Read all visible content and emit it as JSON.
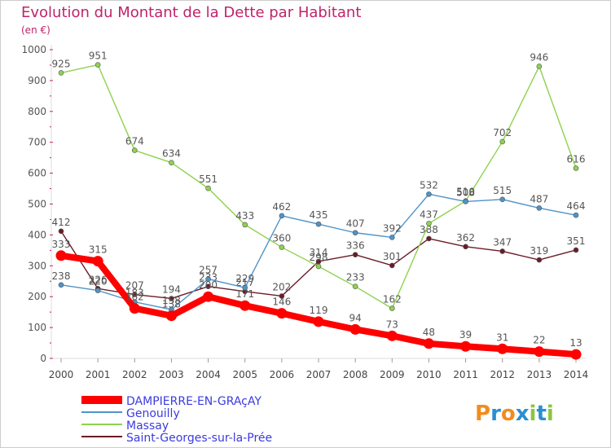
{
  "chart_data": {
    "type": "line",
    "title": "Evolution du Montant de la Dette par Habitant",
    "subtitle": "(en €)",
    "xlabel": "",
    "ylabel": "",
    "ylim": [
      0,
      1000
    ],
    "yticks": [
      0,
      100,
      200,
      300,
      400,
      500,
      600,
      700,
      800,
      900,
      1000
    ],
    "x": [
      "2000",
      "2001",
      "2002",
      "2003",
      "2004",
      "2005",
      "2006",
      "2007",
      "2008",
      "2009",
      "2010",
      "2011",
      "2012",
      "2013",
      "2014"
    ],
    "grid": false,
    "legend_position": "bottom-left",
    "series": [
      {
        "name": "Saint-Georges-sur-la-Prée",
        "color": "#6b1c26",
        "values": [
          412,
          226,
          207,
          194,
          233,
          217,
          202,
          314,
          336,
          301,
          388,
          362,
          347,
          319,
          351
        ],
        "labels": [
          "412",
          "226",
          "207",
          "194",
          "233",
          "217",
          "202",
          "314",
          "336",
          "301",
          "388",
          "362",
          "347",
          "319",
          "351"
        ]
      },
      {
        "name": "Massay",
        "color": "#8ed24f",
        "values": [
          925,
          951,
          674,
          634,
          551,
          433,
          360,
          298,
          233,
          162,
          437,
          510,
          702,
          946,
          616
        ],
        "labels": [
          "925",
          "951",
          "674",
          "634",
          "551",
          "433",
          "360",
          "298",
          "233",
          "162",
          "437",
          "510",
          "702",
          "946",
          "616"
        ]
      },
      {
        "name": "Genouilly",
        "color": "#4f93c8",
        "values": [
          238,
          220,
          183,
          158,
          257,
          229,
          462,
          435,
          407,
          392,
          532,
          508,
          515,
          487,
          464
        ],
        "labels": [
          "238",
          "220",
          "183",
          "158",
          "257",
          "229",
          "462",
          "435",
          "407",
          "392",
          "532",
          "508",
          "515",
          "487",
          "464"
        ]
      },
      {
        "name": "DAMPIERRE-EN-GRAçAY",
        "color": "#ff0000",
        "values": [
          333,
          315,
          162,
          138,
          200,
          171,
          146,
          119,
          94,
          73,
          48,
          39,
          31,
          22,
          13
        ],
        "labels": [
          "333",
          "315",
          "162",
          "138",
          "200",
          "171",
          "146",
          "119",
          "94",
          "73",
          "48",
          "39",
          "31",
          "22",
          "13"
        ]
      }
    ],
    "legend": [
      {
        "name": "DAMPIERRE-EN-GRAçAY",
        "color": "#ff0000"
      },
      {
        "name": "Genouilly",
        "color": "#4f93c8"
      },
      {
        "name": "Massay",
        "color": "#8ed24f"
      },
      {
        "name": "Saint-Georges-sur-la-Prée",
        "color": "#6b1c26"
      }
    ]
  },
  "branding": {
    "logo_text": "Proxiti",
    "letters": [
      "P",
      "r",
      "o",
      "x",
      "i",
      "t",
      "i"
    ],
    "letter_colors": [
      "#f28c1e",
      "#2a8fd0",
      "#f28c1e",
      "#2a8fd0",
      "#8cc63f",
      "#2a8fd0",
      "#8cc63f"
    ]
  }
}
